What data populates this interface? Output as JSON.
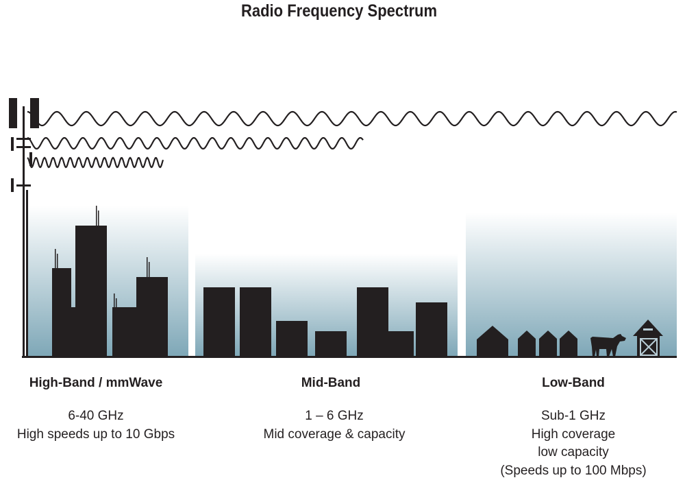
{
  "title": "Radio Frequency Spectrum",
  "colors": {
    "silhouette": "#231f20",
    "gradient_top": "#ffffff",
    "gradient_bottom": "#7ea7b7"
  },
  "bands": [
    {
      "name": "High-Band / mmWave",
      "lines": [
        "6-40 GHz",
        "High speeds up to 10 Gbps"
      ]
    },
    {
      "name": "Mid-Band",
      "lines": [
        "1 – 6 GHz",
        "Mid coverage & capacity"
      ]
    },
    {
      "name": "Low-Band",
      "lines": [
        "Sub-1 GHz",
        "High coverage",
        "low capacity",
        "(Speeds up to 100 Mbps)"
      ]
    }
  ],
  "icons": [
    "cell-tower-icon",
    "city-buildings-icon",
    "suburb-buildings-icon",
    "house-icon",
    "cow-icon",
    "barn-icon"
  ]
}
